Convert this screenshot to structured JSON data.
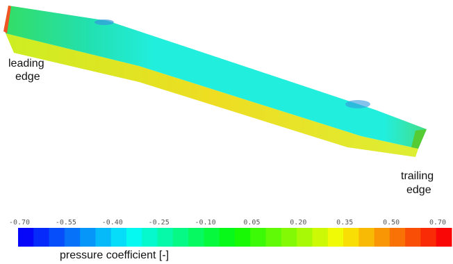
{
  "annotations": {
    "leading_edge": [
      "leading",
      "edge"
    ],
    "trailing_edge": [
      "trailing",
      "edge"
    ]
  },
  "colorbar": {
    "ticks": [
      "-0.70",
      "-0.55",
      "-0.40",
      "-0.25",
      "-0.10",
      "0.05",
      "0.20",
      "0.35",
      "0.50",
      "0.70"
    ],
    "title": "pressure coefficient [-]"
  }
}
